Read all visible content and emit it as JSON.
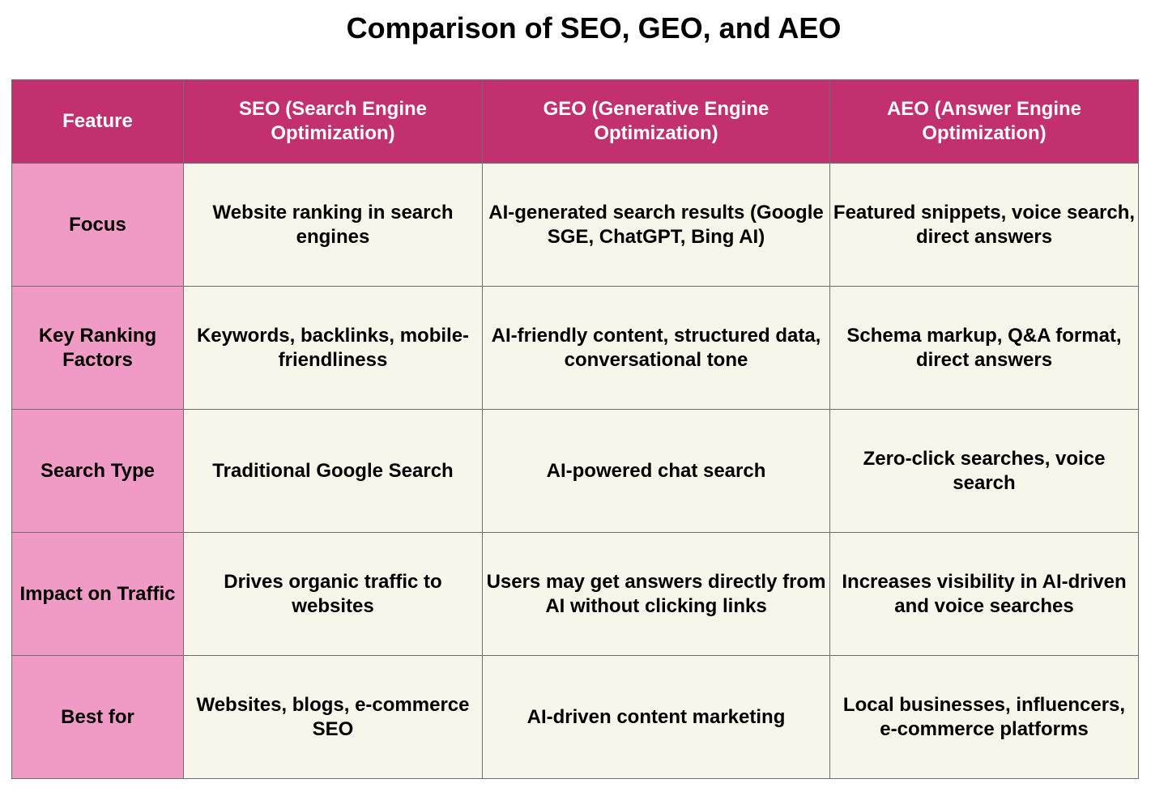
{
  "title": "Comparison of SEO, GEO, and AEO",
  "colors": {
    "header_bg": "#c2306f",
    "header_text": "#ffffff",
    "feature_column_bg": "#f09ac6",
    "cell_bg": "#f8f6ea",
    "border": "#6e6e6e"
  },
  "chart_data": {
    "type": "table",
    "title": "Comparison of SEO, GEO, and AEO",
    "columns": [
      "Feature",
      "SEO (Search Engine Optimization)",
      "GEO (Generative Engine Optimization)",
      "AEO (Answer Engine Optimization)"
    ],
    "rows": [
      [
        "Focus",
        "Website ranking in search engines",
        "AI-generated search results (Google SGE, ChatGPT, Bing AI)",
        "Featured snippets, voice search, direct answers"
      ],
      [
        "Key Ranking Factors",
        "Keywords, backlinks, mobile-friendliness",
        "AI-friendly content, structured data, conversational tone",
        "Schema markup, Q&A format, direct answers"
      ],
      [
        "Search Type",
        "Traditional Google Search",
        "AI-powered chat search",
        "Zero-click searches, voice search"
      ],
      [
        "Impact on Traffic",
        "Drives organic traffic to websites",
        "Users may get answers directly from AI without clicking links",
        "Increases visibility in AI-driven and voice searches"
      ],
      [
        "Best for",
        "Websites, blogs, e-commerce SEO",
        "AI-driven content marketing",
        "Local businesses, influencers, e-commerce platforms"
      ]
    ]
  }
}
